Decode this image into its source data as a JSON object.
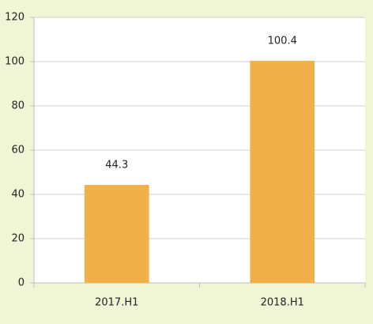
{
  "chart_data": {
    "type": "bar",
    "categories": [
      "2017.H1",
      "2018.H1"
    ],
    "values": [
      44.3,
      100.4
    ],
    "color": "#f0b04a",
    "ylim": [
      0,
      120
    ],
    "yticks": [
      0,
      20,
      40,
      60,
      80,
      100,
      120
    ],
    "grid": true
  }
}
